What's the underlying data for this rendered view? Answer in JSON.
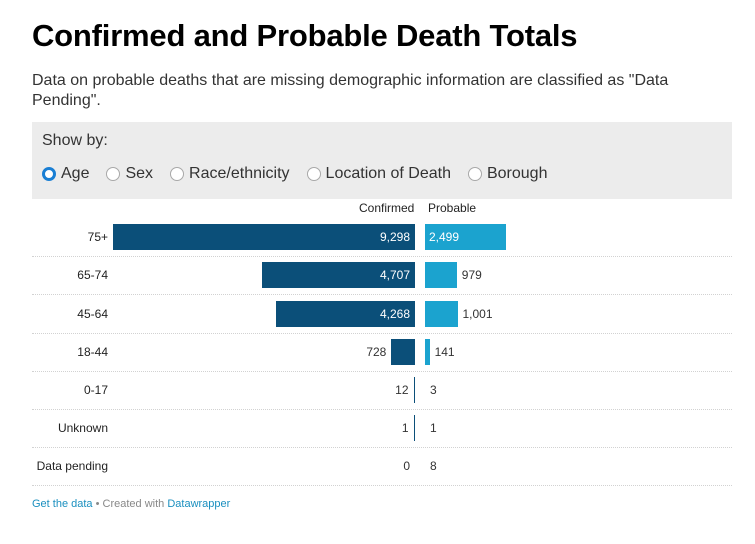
{
  "title": "Confirmed and Probable Death Totals",
  "subtitle": "Data on probable deaths that are missing demographic information are classified as \"Data Pending\".",
  "controls": {
    "show_by_label": "Show by:",
    "options": [
      "Age",
      "Sex",
      "Race/ethnicity",
      "Location of Death",
      "Borough"
    ],
    "selected": "Age"
  },
  "colors": {
    "confirmed": "#0b4f79",
    "probable": "#1ba3cf"
  },
  "chart_data": {
    "type": "bar",
    "orientation": "horizontal",
    "categories": [
      "75+",
      "65-74",
      "45-64",
      "18-44",
      "0-17",
      "Unknown",
      "Data pending"
    ],
    "series": [
      {
        "name": "Confirmed",
        "values": [
          9298,
          4707,
          4268,
          728,
          12,
          1,
          0
        ],
        "labels": [
          "9,298",
          "4,707",
          "4,268",
          "728",
          "12",
          "1",
          "0"
        ]
      },
      {
        "name": "Probable",
        "values": [
          2499,
          979,
          1001,
          141,
          3,
          1,
          8
        ],
        "labels": [
          "2,499",
          "979",
          "1,001",
          "141",
          "3",
          "1",
          "8"
        ]
      }
    ]
  },
  "footer": {
    "get_data": "Get the data",
    "separator": " • Created with ",
    "tool": "Datawrapper"
  }
}
